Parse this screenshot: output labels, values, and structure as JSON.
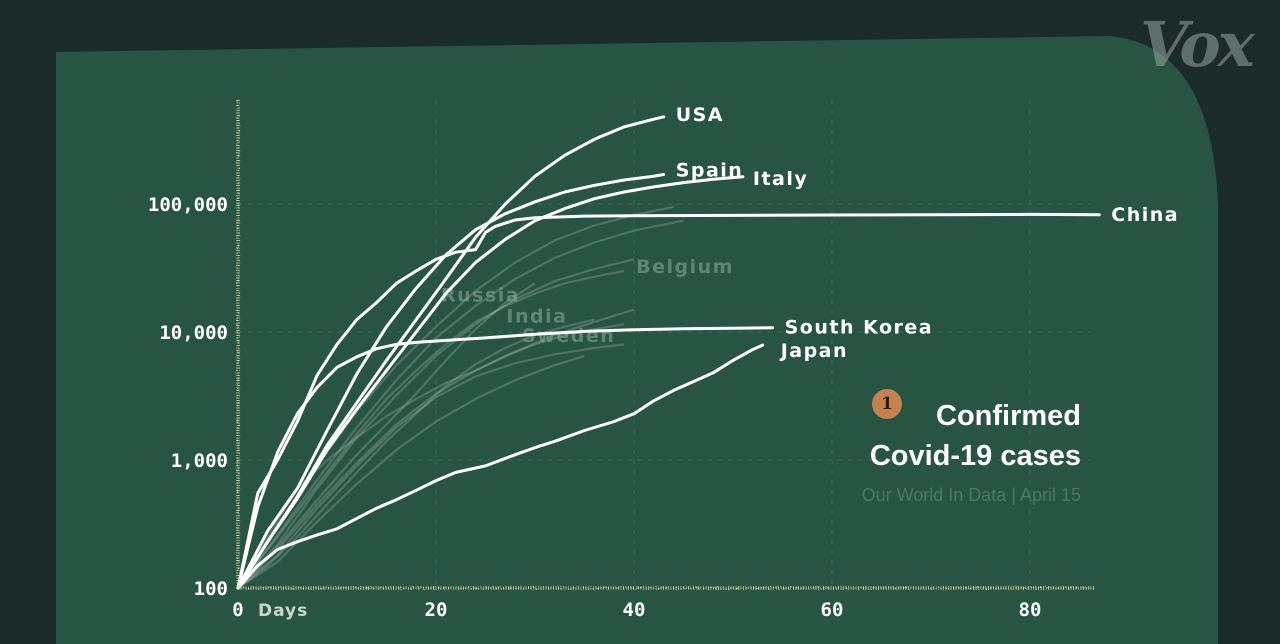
{
  "brand": {
    "logo_text": "Vox"
  },
  "caption": {
    "badge": "1",
    "title_line1": "Confirmed",
    "title_line2": "Covid-19 cases",
    "source": "Our World In Data | April 15"
  },
  "colors": {
    "background": "#1b2b29",
    "board": "#275443",
    "axis": "#e6dca2",
    "highlight_line": "#ffffff",
    "faint_line": "#b8c7bf",
    "badge": "#c5824f"
  },
  "chart_data": {
    "type": "line",
    "y_scale": "log",
    "ylim": [
      100,
      1000000
    ],
    "xlim": [
      0,
      87
    ],
    "x_ticks": [
      0,
      20,
      40,
      60,
      80
    ],
    "x_tick_labels": [
      "0",
      "20",
      "40",
      "60",
      "80"
    ],
    "x_unit_label": "Days",
    "y_ticks": [
      100,
      1000,
      10000,
      100000
    ],
    "y_tick_labels": [
      "100",
      "1,000",
      "10,000",
      "100,000"
    ],
    "grid": true,
    "series": [
      {
        "name": "USA",
        "highlight": true,
        "x": [
          0,
          3,
          6,
          9,
          12,
          15,
          18,
          21,
          24,
          27,
          30,
          33,
          36,
          39,
          42,
          43
        ],
        "y": [
          100,
          230,
          520,
          1300,
          2800,
          6000,
          12500,
          26000,
          55000,
          100000,
          165000,
          240000,
          320000,
          400000,
          460000,
          480000
        ]
      },
      {
        "name": "Spain",
        "highlight": true,
        "x": [
          0,
          3,
          6,
          9,
          12,
          15,
          18,
          21,
          24,
          27,
          30,
          33,
          36,
          39,
          42,
          43
        ],
        "y": [
          100,
          280,
          600,
          1700,
          4700,
          11000,
          22000,
          40000,
          63000,
          84000,
          104000,
          124000,
          140000,
          154000,
          165000,
          170000
        ]
      },
      {
        "name": "Italy",
        "highlight": true,
        "x": [
          0,
          3,
          6,
          9,
          12,
          15,
          18,
          21,
          24,
          27,
          30,
          33,
          36,
          39,
          42,
          45,
          48,
          51
        ],
        "y": [
          100,
          230,
          500,
          1200,
          2500,
          5000,
          10000,
          20000,
          35000,
          53000,
          74000,
          92000,
          110000,
          124000,
          136000,
          147000,
          156000,
          163000
        ]
      },
      {
        "name": "China",
        "highlight": true,
        "x": [
          0,
          2,
          4,
          6,
          8,
          10,
          12,
          14,
          16,
          18,
          20,
          22,
          24,
          25,
          26,
          28,
          30,
          35,
          40,
          50,
          60,
          70,
          80,
          87
        ],
        "y": [
          100,
          550,
          1000,
          2000,
          4600,
          8000,
          12500,
          17000,
          24000,
          30000,
          37000,
          42000,
          44000,
          60000,
          67000,
          75000,
          78000,
          80500,
          81000,
          81500,
          82000,
          82500,
          83000,
          82400
        ]
      },
      {
        "name": "South Korea",
        "highlight": true,
        "x": [
          0,
          2,
          4,
          6,
          8,
          10,
          12,
          14,
          16,
          18,
          20,
          22,
          25,
          30,
          35,
          40,
          45,
          50,
          54
        ],
        "y": [
          100,
          430,
          1150,
          2300,
          3700,
          5300,
          6400,
          7400,
          8000,
          8300,
          8500,
          8700,
          9000,
          9600,
          10100,
          10400,
          10600,
          10700,
          10800
        ]
      },
      {
        "name": "Japan",
        "highlight": true,
        "x": [
          0,
          2,
          4,
          6,
          8,
          10,
          12,
          14,
          16,
          18,
          20,
          22,
          25,
          28,
          30,
          32,
          35,
          38,
          40,
          42,
          44,
          46,
          48,
          50,
          52,
          53
        ],
        "y": [
          100,
          150,
          200,
          230,
          260,
          290,
          350,
          420,
          490,
          580,
          690,
          800,
          900,
          1100,
          1250,
          1400,
          1700,
          2000,
          2300,
          2900,
          3500,
          4100,
          4800,
          6000,
          7300,
          7900
        ]
      },
      {
        "name": "Belgium",
        "highlight": false,
        "x": [
          0,
          3,
          6,
          9,
          12,
          15,
          18,
          21,
          24,
          27,
          30,
          33,
          36,
          39
        ],
        "y": [
          100,
          200,
          400,
          800,
          1600,
          3000,
          5000,
          8000,
          12000,
          16000,
          20000,
          24000,
          27000,
          30000
        ]
      },
      {
        "name": "Russia",
        "highlight": false,
        "x": [
          0,
          3,
          6,
          9,
          12,
          15,
          18,
          21,
          24,
          27,
          30
        ],
        "y": [
          100,
          170,
          320,
          600,
          1100,
          1900,
          3300,
          6000,
          10500,
          17000,
          24000
        ]
      },
      {
        "name": "India",
        "highlight": false,
        "x": [
          0,
          3,
          6,
          9,
          12,
          15,
          18,
          21,
          24,
          27,
          30,
          33,
          36
        ],
        "y": [
          100,
          150,
          250,
          450,
          800,
          1400,
          2300,
          3800,
          5600,
          7500,
          9500,
          11000,
          12500
        ]
      },
      {
        "name": "Sweden",
        "highlight": false,
        "x": [
          0,
          3,
          6,
          9,
          12,
          15,
          18,
          21,
          24,
          27,
          30,
          33,
          36,
          39
        ],
        "y": [
          100,
          250,
          600,
          1000,
          1500,
          2200,
          3000,
          4000,
          5000,
          6500,
          8000,
          9500,
          10500,
          11500
        ]
      },
      {
        "name": "",
        "highlight": false,
        "x": [
          0,
          4,
          8,
          12,
          16,
          20,
          24,
          28,
          32,
          36,
          40,
          44
        ],
        "y": [
          100,
          300,
          900,
          2400,
          5500,
          11000,
          21000,
          35000,
          52000,
          68000,
          82000,
          95000
        ]
      },
      {
        "name": "",
        "highlight": false,
        "x": [
          0,
          4,
          8,
          12,
          16,
          20,
          24,
          28,
          32,
          36,
          40
        ],
        "y": [
          100,
          220,
          600,
          1500,
          3200,
          6500,
          11500,
          18000,
          25000,
          31000,
          37000
        ]
      },
      {
        "name": "",
        "highlight": false,
        "x": [
          0,
          4,
          8,
          12,
          16,
          20,
          24,
          28,
          32,
          36,
          39
        ],
        "y": [
          100,
          180,
          420,
          900,
          1800,
          3100,
          4500,
          5700,
          6700,
          7500,
          8000
        ]
      },
      {
        "name": "",
        "highlight": false,
        "x": [
          0,
          4,
          8,
          12,
          16,
          20,
          24,
          28,
          32,
          36,
          40
        ],
        "y": [
          100,
          200,
          450,
          950,
          1900,
          3300,
          5000,
          7000,
          9500,
          12000,
          15000
        ]
      },
      {
        "name": "",
        "highlight": false,
        "x": [
          0,
          4,
          8,
          12,
          16,
          20,
          24,
          28,
          32,
          35
        ],
        "y": [
          100,
          160,
          330,
          650,
          1200,
          2000,
          3000,
          4200,
          5500,
          6500
        ]
      },
      {
        "name": "",
        "highlight": false,
        "x": [
          0,
          4,
          8,
          12,
          16,
          20,
          24,
          28,
          32,
          36,
          40,
          45
        ],
        "y": [
          100,
          260,
          700,
          1800,
          4200,
          9000,
          16000,
          26000,
          38000,
          50000,
          62000,
          74000
        ]
      }
    ]
  }
}
